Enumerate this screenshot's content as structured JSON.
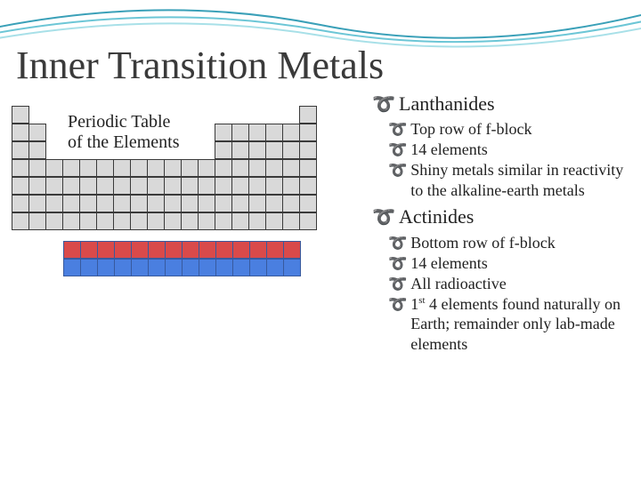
{
  "title": "Inner Transition Metals",
  "asideTitle": "Periodic Table\nof the Elements",
  "sections": [
    {
      "heading": "Lanthanides",
      "bullets": [
        "Top row of f-block",
        "14 elements",
        "Shiny metals similar in reactivity to the alkaline-earth metals"
      ]
    },
    {
      "heading": "Actinides",
      "bullets": [
        "Bottom row of f-block",
        "14 elements",
        "All radioactive",
        "1<sup>st</sup> 4 elements found naturally on Earth; remainder only lab-made elements"
      ]
    }
  ],
  "bulletGlyph": "་",
  "periodicTable": {
    "mainRows": 7,
    "mainCols": 18,
    "cellSize": 20,
    "cellFill": "#d9d9d9",
    "cellBorder": "#3a3a3a",
    "occupancy": [
      [
        1,
        0,
        0,
        0,
        0,
        0,
        0,
        0,
        0,
        0,
        0,
        0,
        0,
        0,
        0,
        0,
        0,
        1
      ],
      [
        1,
        1,
        0,
        0,
        0,
        0,
        0,
        0,
        0,
        0,
        0,
        0,
        1,
        1,
        1,
        1,
        1,
        1
      ],
      [
        1,
        1,
        0,
        0,
        0,
        0,
        0,
        0,
        0,
        0,
        0,
        0,
        1,
        1,
        1,
        1,
        1,
        1
      ],
      [
        1,
        1,
        1,
        1,
        1,
        1,
        1,
        1,
        1,
        1,
        1,
        1,
        1,
        1,
        1,
        1,
        1,
        1
      ],
      [
        1,
        1,
        1,
        1,
        1,
        1,
        1,
        1,
        1,
        1,
        1,
        1,
        1,
        1,
        1,
        1,
        1,
        1
      ],
      [
        1,
        1,
        1,
        1,
        1,
        1,
        1,
        1,
        1,
        1,
        1,
        1,
        1,
        1,
        1,
        1,
        1,
        1
      ],
      [
        1,
        1,
        1,
        1,
        1,
        1,
        1,
        1,
        1,
        1,
        1,
        1,
        1,
        1,
        1,
        1,
        1,
        1
      ]
    ],
    "fBlock": {
      "cols": 14,
      "rows": 2,
      "cellBorder": "#385a9e",
      "rowColors": [
        "#d94a4a",
        "#4a7fe0"
      ]
    }
  },
  "wave": {
    "stroke1": "#3aa0b8",
    "stroke2": "#6cc6d6",
    "stroke3": "#a8e0e8"
  }
}
